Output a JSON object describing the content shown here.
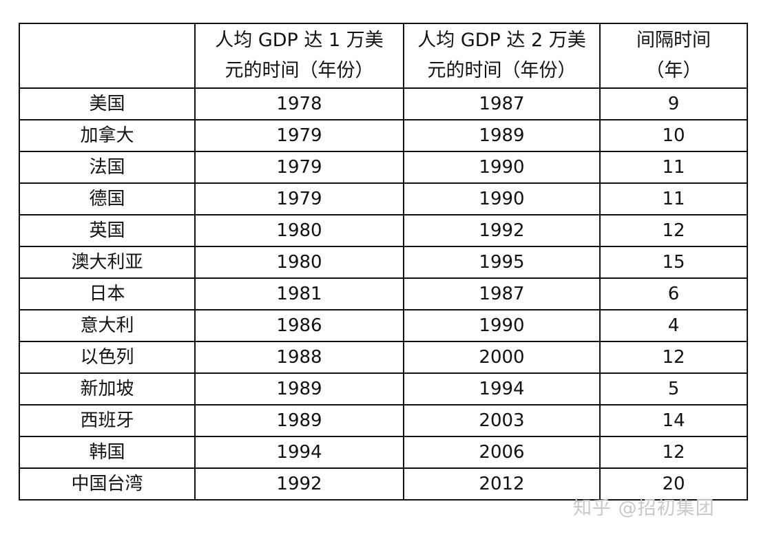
{
  "table": {
    "headers": [
      {
        "lines": [
          ""
        ]
      },
      {
        "lines": [
          "人均 GDP 达 1 万美",
          "元的时间（年份）"
        ]
      },
      {
        "lines": [
          "人均 GDP 达 2 万美",
          "元的时间（年份）"
        ]
      },
      {
        "lines": [
          "间隔时间",
          "（年）"
        ]
      }
    ],
    "rows": [
      [
        "美国",
        "1978",
        "1987",
        "9"
      ],
      [
        "加拿大",
        "1979",
        "1989",
        "10"
      ],
      [
        "法国",
        "1979",
        "1990",
        "11"
      ],
      [
        "德国",
        "1979",
        "1990",
        "11"
      ],
      [
        "英国",
        "1980",
        "1992",
        "12"
      ],
      [
        "澳大利亚",
        "1980",
        "1995",
        "15"
      ],
      [
        "日本",
        "1981",
        "1987",
        "6"
      ],
      [
        "意大利",
        "1986",
        "1990",
        "4"
      ],
      [
        "以色列",
        "1988",
        "2000",
        "12"
      ],
      [
        "新加坡",
        "1989",
        "1994",
        "5"
      ],
      [
        "西班牙",
        "1989",
        "2003",
        "14"
      ],
      [
        "韩国",
        "1994",
        "2006",
        "12"
      ],
      [
        "中国台湾",
        "1992",
        "2012",
        "20"
      ]
    ]
  },
  "watermark": "知乎 @招初集团"
}
